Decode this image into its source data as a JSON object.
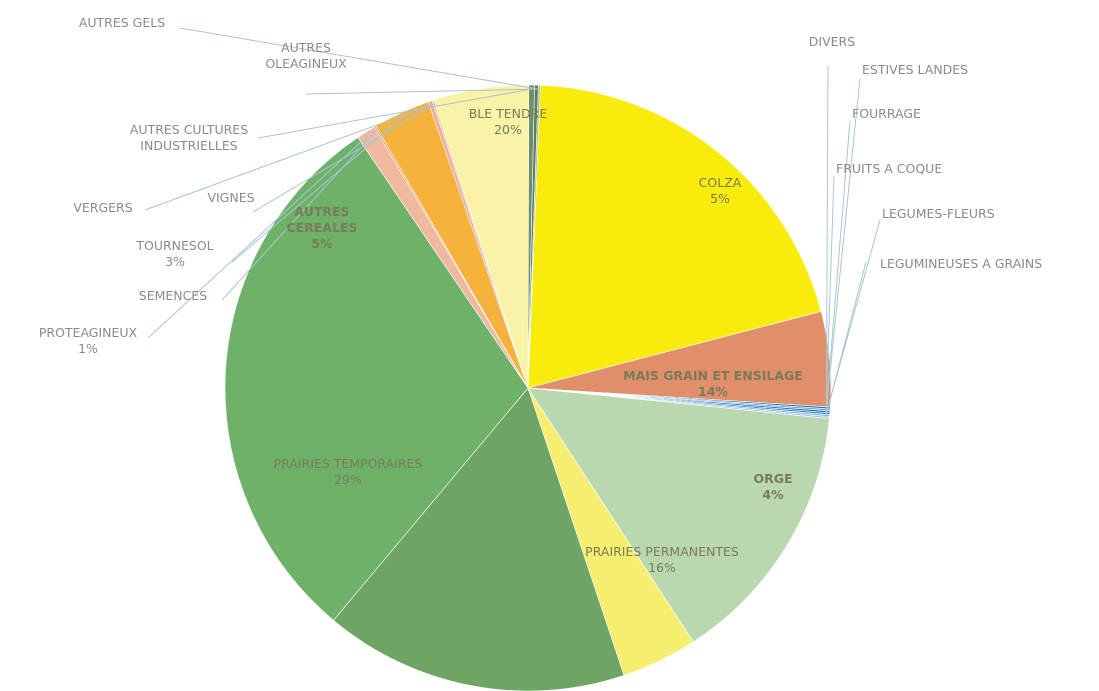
{
  "chart_data": {
    "type": "pie",
    "title": "",
    "slices": [
      {
        "label": "BLE TENDRE",
        "value": 20,
        "value_label": "20%",
        "color": "#f9ec0c"
      },
      {
        "label": "COLZA",
        "value": 5,
        "value_label": "5%",
        "color": "#e08f6a"
      },
      {
        "label": "DIVERS",
        "value": 0.1,
        "value_label": "",
        "color": "#1f77c4"
      },
      {
        "label": "ESTIVES LANDES",
        "value": 0.1,
        "value_label": "",
        "color": "#5aa7d8"
      },
      {
        "label": "FOURRAGE",
        "value": 0.1,
        "value_label": "",
        "color": "#2b6fa8"
      },
      {
        "label": "FRUITS A COQUE",
        "value": 0.1,
        "value_label": "",
        "color": "#3a86c2"
      },
      {
        "label": "LEGUMES-FLEURS",
        "value": 0.1,
        "value_label": "",
        "color": "#7db8dc"
      },
      {
        "label": "LEGUMINEUSES A GRAINS",
        "value": 0.1,
        "value_label": "",
        "color": "#a9c9e3"
      },
      {
        "label": "MAIS GRAIN ET ENSILAGE",
        "value": 14,
        "value_label": "14%",
        "color": "#b9d8b0"
      },
      {
        "label": "ORGE",
        "value": 4,
        "value_label": "4%",
        "color": "#f6ee70"
      },
      {
        "label": "PRAIRIES PERMANENTES",
        "value": 16,
        "value_label": "16%",
        "color": "#6fa564"
      },
      {
        "label": "PRAIRIES TEMPORAIRES",
        "value": 29,
        "value_label": "29%",
        "color": "#6eb26a"
      },
      {
        "label": "PROTEAGINEUX",
        "value": 1,
        "value_label": "1%",
        "color": "#f1b8a0"
      },
      {
        "label": "SEMENCES",
        "value": 0.1,
        "value_label": "",
        "color": "#e8a060"
      },
      {
        "label": "TOURNESOL",
        "value": 3,
        "value_label": "3%",
        "color": "#f5b23c"
      },
      {
        "label": "VERGERS",
        "value": 0.2,
        "value_label": "",
        "color": "#f0a8a0"
      },
      {
        "label": "VIGNES",
        "value": 0.1,
        "value_label": "",
        "color": "#ecc77a"
      },
      {
        "label": "AUTRES CEREALES",
        "value": 5,
        "value_label": "5%",
        "color": "#f9f3a8"
      },
      {
        "label": "AUTRES CULTURES INDUSTRIELLES",
        "value": 0.3,
        "value_label": "",
        "color": "#6e8f6a"
      },
      {
        "label": "AUTRES OLEAGINEUX",
        "value": 0.2,
        "value_label": "",
        "color": "#5f7f5a"
      },
      {
        "label": "AUTRES GELS",
        "value": 0.1,
        "value_label": "",
        "color": "#9fb59a"
      }
    ]
  }
}
